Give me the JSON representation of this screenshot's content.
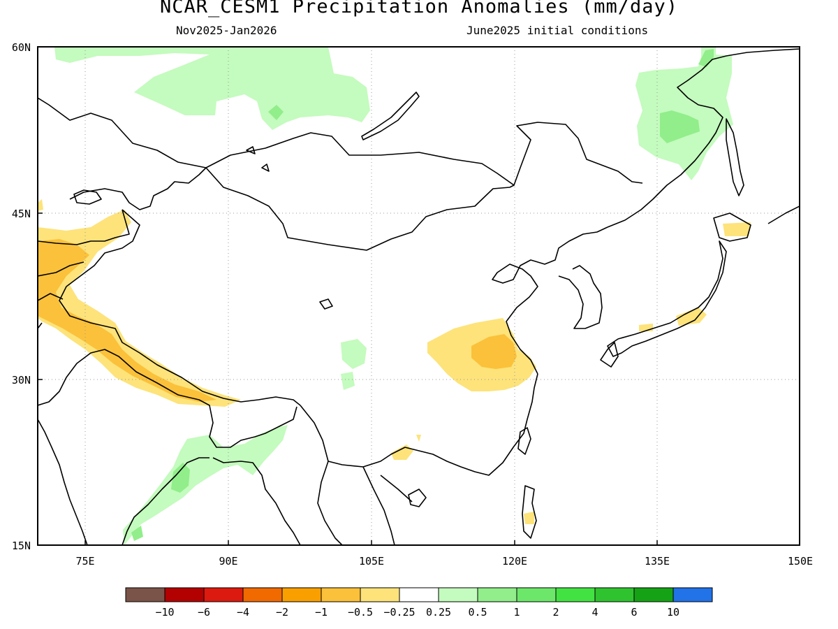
{
  "title": "NCAR_CESM1 Precipitation Anomalies (mm/day)",
  "subtitle_left": "Nov2025-Jan2026",
  "subtitle_right": "June2025 initial conditions",
  "map": {
    "lon_range": [
      70,
      150
    ],
    "lat_range": [
      15,
      60
    ],
    "lat_ticks": [
      "15N",
      "30N",
      "45N",
      "60N"
    ],
    "lon_ticks": [
      "75E",
      "90E",
      "105E",
      "120E",
      "135E",
      "150E"
    ],
    "grid_lines": "dotted"
  },
  "colorbar": {
    "colors": [
      "#7a5449",
      "#b30000",
      "#dd1a0f",
      "#f06a00",
      "#f9a000",
      "#fbc13a",
      "#fde37a",
      "#ffffff",
      "#c4fbbe",
      "#91ee8b",
      "#6ce76a",
      "#43e243",
      "#2fc42f",
      "#15a315",
      "#2272e8"
    ],
    "labels": [
      "−10",
      "−6",
      "−4",
      "−2",
      "−1",
      "−0.5",
      "−0.25",
      "0.25",
      "0.5",
      "1",
      "2",
      "4",
      "6",
      "10"
    ]
  },
  "legend_colors": {
    "dry_weak": "#fde37a",
    "dry_mod": "#fbc13a",
    "wet_weak": "#c4fbbe",
    "wet_mod": "#91ee8b",
    "wet_strong": "#6ce76a"
  }
}
